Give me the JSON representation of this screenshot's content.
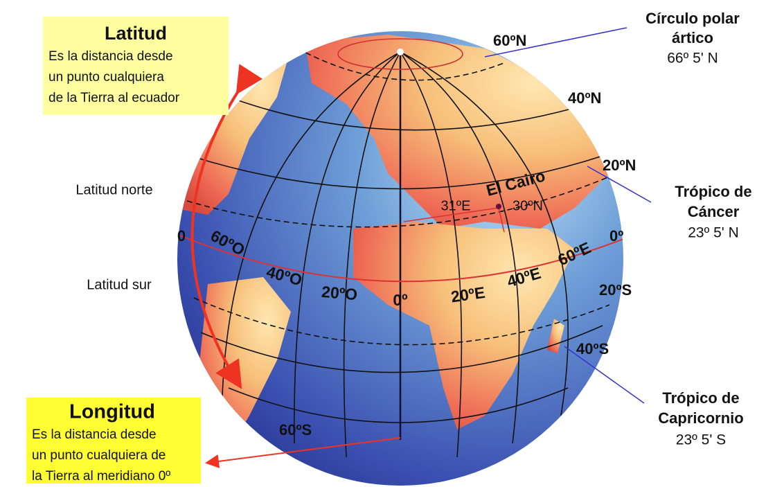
{
  "latitud_box": {
    "title": "Latitud",
    "lines": [
      "Es la distancia desde",
      "un punto cualquiera",
      "de la Tierra al ecuador"
    ]
  },
  "longitud_box": {
    "title": "Longitud",
    "lines": [
      "Es la distancia desde",
      "un punto cualquiera de",
      "la Tierra al meridiano 0º"
    ]
  },
  "side_labels": {
    "north": "Latitud norte",
    "zero": "0",
    "south": "Latitud sur"
  },
  "latitudes": [
    "60ºN",
    "40ºN",
    "20ºN",
    "0º",
    "20ºS",
    "40ºS",
    "60ºS"
  ],
  "longitudes": [
    "60ºO",
    "40ºO",
    "20ºO",
    "0º",
    "20ºE",
    "40ºE",
    "60ºE"
  ],
  "cairo": {
    "name": "El Cairo",
    "longitude": "31ºE",
    "latitude": "30ºN"
  },
  "callouts": [
    {
      "title": [
        "Círculo polar",
        "ártico"
      ],
      "value": "66º 5' N"
    },
    {
      "title": [
        "Trópico de",
        "Cáncer"
      ],
      "value": "23º 5' N"
    },
    {
      "title": [
        "Trópico de",
        "Capricornio"
      ],
      "value": "23º 5' S"
    }
  ]
}
